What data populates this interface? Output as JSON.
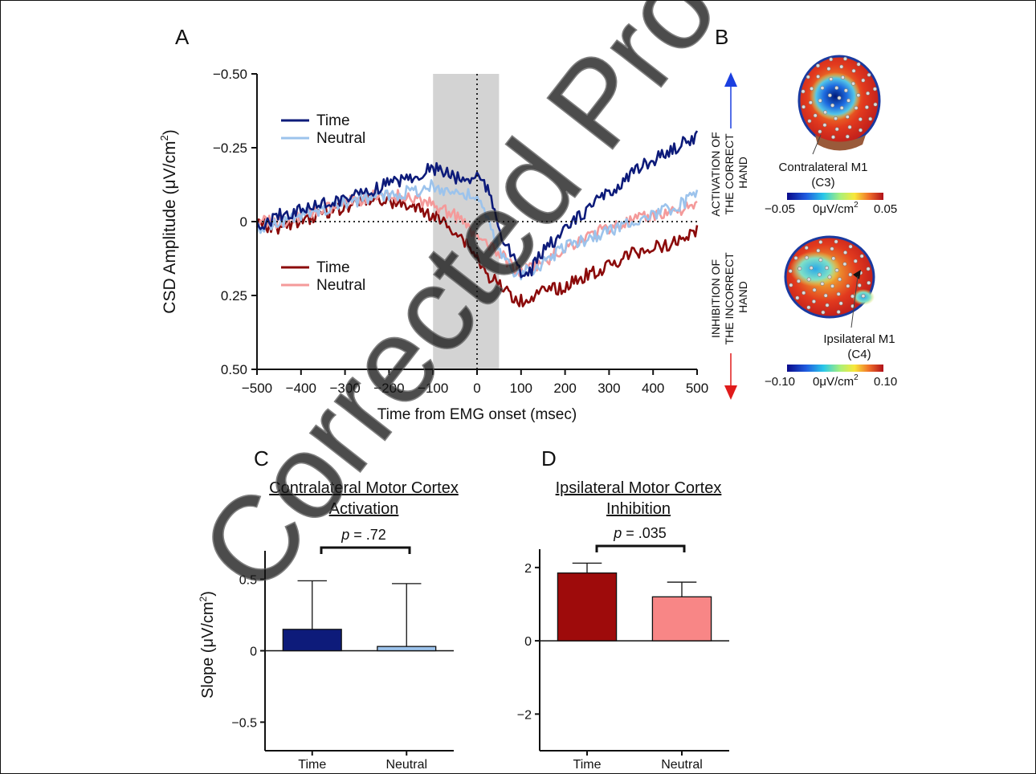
{
  "watermark": "Corrected Proof",
  "panels": {
    "A": "A",
    "B": "B",
    "C": "C",
    "D": "D"
  },
  "chart_data": [
    {
      "id": "A",
      "type": "line",
      "xlabel": "Time from EMG onset (msec)",
      "ylabel_main": "CSD Amplitude (μV/cm",
      "ylabel_sup": "2",
      "ylabel_tail": ")",
      "xlim": [
        -500,
        500
      ],
      "ylim": [
        -0.5,
        0.5
      ],
      "y_inverted": true,
      "xticks": [
        -500,
        -400,
        -300,
        -200,
        -100,
        0,
        100,
        200,
        300,
        400,
        500
      ],
      "yticks": [
        -0.5,
        -0.25,
        0,
        0.25,
        0.5
      ],
      "ytick_labels": [
        "−0.50",
        "−0.25",
        "0",
        "0.25",
        "0.50"
      ],
      "xtick_labels": [
        "−500",
        "−400",
        "−300",
        "−200",
        "−100",
        "0",
        "100",
        "200",
        "300",
        "400",
        "500"
      ],
      "shaded_window": [
        -100,
        50
      ],
      "legend_top": [
        "Time",
        "Neutral"
      ],
      "legend_bottom": [
        "Time",
        "Neutral"
      ],
      "series": [
        {
          "name": "Time",
          "color": "#0d1b7a",
          "x": [
            -500,
            -450,
            -400,
            -350,
            -300,
            -250,
            -200,
            -150,
            -100,
            -80,
            -50,
            -20,
            0,
            20,
            40,
            60,
            80,
            100,
            120,
            150,
            200,
            250,
            300,
            350,
            400,
            450,
            500
          ],
          "y": [
            0.02,
            -0.02,
            -0.04,
            -0.06,
            -0.08,
            -0.1,
            -0.13,
            -0.15,
            -0.18,
            -0.17,
            -0.15,
            -0.14,
            -0.16,
            -0.12,
            -0.04,
            0.06,
            0.12,
            0.18,
            0.17,
            0.1,
            0.03,
            -0.04,
            -0.1,
            -0.16,
            -0.21,
            -0.25,
            -0.29
          ]
        },
        {
          "name": "Neutral",
          "color": "#9cc3ec",
          "x": [
            -500,
            -450,
            -400,
            -350,
            -300,
            -250,
            -200,
            -150,
            -100,
            -50,
            0,
            20,
            40,
            60,
            80,
            100,
            150,
            200,
            250,
            300,
            350,
            400,
            450,
            500
          ],
          "y": [
            0.02,
            0.0,
            -0.02,
            -0.04,
            -0.06,
            -0.08,
            -0.09,
            -0.1,
            -0.12,
            -0.1,
            -0.08,
            -0.02,
            0.06,
            0.12,
            0.16,
            0.18,
            0.14,
            0.08,
            0.06,
            0.03,
            0.0,
            -0.02,
            -0.05,
            -0.09
          ]
        },
        {
          "name": "Time",
          "color": "#8b0a0a",
          "x": [
            -500,
            -450,
            -400,
            -350,
            -300,
            -250,
            -200,
            -150,
            -100,
            -50,
            -20,
            0,
            20,
            40,
            60,
            80,
            100,
            150,
            200,
            250,
            300,
            350,
            400,
            450,
            500
          ],
          "y": [
            0.01,
            0.02,
            0.0,
            -0.03,
            -0.05,
            -0.08,
            -0.07,
            -0.05,
            -0.02,
            0.03,
            0.08,
            0.12,
            0.18,
            0.2,
            0.23,
            0.25,
            0.27,
            0.24,
            0.22,
            0.18,
            0.15,
            0.11,
            0.09,
            0.07,
            0.03
          ]
        },
        {
          "name": "Neutral",
          "color": "#f49a9a",
          "x": [
            -500,
            -450,
            -400,
            -350,
            -300,
            -250,
            -200,
            -150,
            -100,
            -50,
            0,
            20,
            40,
            60,
            80,
            100,
            150,
            200,
            250,
            300,
            350,
            400,
            450,
            500
          ],
          "y": [
            0.0,
            0.0,
            -0.02,
            -0.04,
            -0.06,
            -0.08,
            -0.09,
            -0.08,
            -0.06,
            -0.02,
            0.05,
            0.08,
            0.1,
            0.12,
            0.15,
            0.17,
            0.14,
            0.09,
            0.05,
            0.02,
            0.0,
            -0.02,
            -0.04,
            -0.05
          ]
        }
      ],
      "side_labels": {
        "top_line1": "ACTIVATION OF",
        "top_line2": "THE CORRECT",
        "top_line3": "HAND",
        "bottom_line1": "INHIBITION OF",
        "bottom_line2": "THE INCORRECT",
        "bottom_line3": "HAND",
        "arrow_up_color": "#1b3fe0",
        "arrow_down_color": "#e01b1b"
      }
    },
    {
      "id": "B",
      "type": "heatmap",
      "maps": [
        {
          "label1": "Contralateral M1",
          "label2": "(C3)",
          "scale_min": "−0.05",
          "scale_unit": "0μV/cm",
          "scale_sup": "2",
          "scale_max": "0.05"
        },
        {
          "label1": "Ipsilateral M1",
          "label2": "(C4)",
          "scale_min": "−0.10",
          "scale_unit": "0μV/cm",
          "scale_sup": "2",
          "scale_max": "0.10"
        }
      ]
    },
    {
      "id": "C",
      "type": "bar",
      "title_line1": "Contralateral Motor Cortex",
      "title_line2": "Activation",
      "p_label_italic": "p",
      "p_label_rest": " = .72",
      "ylabel_main": "Slope (μV/cm",
      "ylabel_sup": "2",
      "ylabel_tail": ")",
      "categories": [
        "Time",
        "Neutral"
      ],
      "values": [
        0.15,
        0.03
      ],
      "errors": [
        0.34,
        0.44
      ],
      "colors": [
        "#0d1b7a",
        "#9cc3ec"
      ],
      "ylim": [
        -0.7,
        0.7
      ],
      "yticks": [
        -0.5,
        0,
        0.5
      ],
      "ytick_labels": [
        "−0.5",
        "0",
        "0.5"
      ]
    },
    {
      "id": "D",
      "type": "bar",
      "title_line1": "Ipsilateral Motor Cortex",
      "title_line2": "Inhibition",
      "p_label_italic": "p",
      "p_label_rest": " = .035",
      "categories": [
        "Time",
        "Neutral"
      ],
      "values": [
        1.85,
        1.2
      ],
      "errors": [
        0.27,
        0.4
      ],
      "colors": [
        "#9e0b0b",
        "#f88686"
      ],
      "ylim": [
        -3,
        2.5
      ],
      "yticks": [
        -2,
        0,
        2
      ],
      "ytick_labels": [
        "−2",
        "0",
        "2"
      ]
    }
  ]
}
